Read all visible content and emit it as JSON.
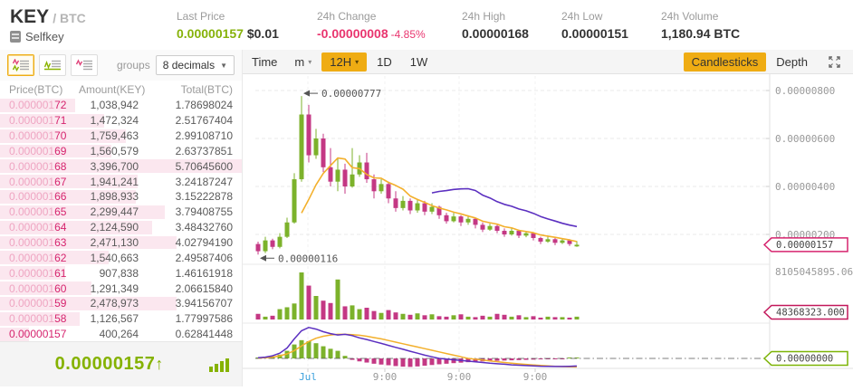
{
  "header": {
    "symbol": "KEY",
    "quote": "/ BTC",
    "name": "Selfkey",
    "stats": [
      {
        "label": "Last Price",
        "value": "0.00000157",
        "extra": "$0.01"
      },
      {
        "label": "24h Change",
        "value": "-0.00000008",
        "extra": "-4.85%"
      },
      {
        "label": "24h High",
        "value": "0.00000168"
      },
      {
        "label": "24h Low",
        "value": "0.00000151"
      },
      {
        "label": "24h Volume",
        "value": "1,180.94 BTC"
      }
    ]
  },
  "orderbook": {
    "groups_label": "groups",
    "decimals_option": "8 decimals",
    "columns": [
      "Price(BTC)",
      "Amount(KEY)",
      "Total(BTC)"
    ],
    "asks": [
      {
        "p": "0.00000172",
        "a": "1,038,942",
        "t": "1.78698024",
        "d": 31
      },
      {
        "p": "0.00000171",
        "a": "1,472,324",
        "t": "2.51767404",
        "d": 43
      },
      {
        "p": "0.00000170",
        "a": "1,759,463",
        "t": "2.99108710",
        "d": 52
      },
      {
        "p": "0.00000169",
        "a": "1,560,579",
        "t": "2.63737851",
        "d": 46
      },
      {
        "p": "0.00000168",
        "a": "3,396,700",
        "t": "5.70645600",
        "d": 100
      },
      {
        "p": "0.00000167",
        "a": "1,941,241",
        "t": "3.24187247",
        "d": 57
      },
      {
        "p": "0.00000166",
        "a": "1,898,933",
        "t": "3.15222878",
        "d": 56
      },
      {
        "p": "0.00000165",
        "a": "2,299,447",
        "t": "3.79408755",
        "d": 68
      },
      {
        "p": "0.00000164",
        "a": "2,124,590",
        "t": "3.48432760",
        "d": 63
      },
      {
        "p": "0.00000163",
        "a": "2,471,130",
        "t": "4.02794190",
        "d": 73
      },
      {
        "p": "0.00000162",
        "a": "1,540,663",
        "t": "2.49587406",
        "d": 45
      },
      {
        "p": "0.00000161",
        "a": "907,838",
        "t": "1.46161918",
        "d": 27
      },
      {
        "p": "0.00000160",
        "a": "1,291,349",
        "t": "2.06615840",
        "d": 38
      },
      {
        "p": "0.00000159",
        "a": "2,478,973",
        "t": "3.94156707",
        "d": 73
      },
      {
        "p": "0.00000158",
        "a": "1,126,567",
        "t": "1.77997586",
        "d": 33
      },
      {
        "p": "0.00000157",
        "a": "400,264",
        "t": "0.62841448",
        "d": 12,
        "hot": true
      }
    ],
    "last_price": "0.00000157",
    "direction_arrow": "↑"
  },
  "toolbar": {
    "time_label": "Time",
    "intervals": [
      {
        "label": "m",
        "dropdown": true
      },
      {
        "label": "12H",
        "dropdown": true,
        "active": true
      },
      {
        "label": "1D"
      },
      {
        "label": "1W"
      }
    ],
    "chart_types": [
      {
        "label": "Candlesticks",
        "active": true
      },
      {
        "label": "Depth"
      }
    ]
  },
  "chart_data": {
    "type": "candlestick",
    "price_unit_e8": true,
    "y_axis": {
      "ticks": [
        {
          "label": "0.00000800",
          "p": 800
        },
        {
          "label": "0.00000600",
          "p": 600
        },
        {
          "label": "0.00000400",
          "p": 400
        },
        {
          "label": "0.00000200",
          "p": 200
        }
      ],
      "current": {
        "label": "0.00000157",
        "p": 157
      }
    },
    "x_labels": [
      {
        "text": "Jul",
        "highlight": true
      },
      {
        "text": "9:00"
      },
      {
        "text": "9:00"
      },
      {
        "text": "9:00"
      }
    ],
    "annotations": {
      "high": {
        "text": "0.00000777",
        "p": 777,
        "ci": 6
      },
      "low": {
        "text": "0.00000116",
        "p": 116,
        "ci": 0
      }
    },
    "volume": {
      "axis_max": "8105045895.06",
      "tag": "48368323.000"
    },
    "macd": {
      "tag": "0.00000000",
      "hist": [
        0.03,
        0.05,
        0.08,
        0.15,
        0.3,
        0.55,
        0.72,
        0.68,
        0.6,
        0.48,
        0.38,
        0.3,
        0.1,
        -0.12,
        -0.25,
        -0.35,
        -0.45,
        -0.52,
        -0.58,
        -0.65,
        -0.7,
        -0.72,
        -0.68,
        -0.62,
        -0.56,
        -0.5,
        -0.45,
        -0.4,
        -0.36,
        -0.32,
        -0.28,
        -0.25,
        -0.22,
        -0.2,
        -0.18,
        -0.16,
        -0.14,
        -0.12,
        -0.1,
        -0.08,
        -0.06,
        -0.05,
        -0.04,
        0.02,
        0.03
      ],
      "macd_line": [
        0.02,
        0.04,
        0.08,
        0.16,
        0.32,
        0.6,
        0.85,
        0.95,
        0.9,
        0.82,
        0.76,
        0.72,
        0.74,
        0.7,
        0.63,
        0.58,
        0.52,
        0.46,
        0.4,
        0.34,
        0.28,
        0.22,
        0.16,
        0.1,
        0.05,
        0.0,
        -0.05,
        -0.1,
        -0.15,
        -0.2,
        -0.25,
        -0.3,
        -0.35,
        -0.39,
        -0.43,
        -0.47,
        -0.5,
        -0.53,
        -0.55,
        -0.57,
        -0.58,
        -0.59,
        -0.59,
        -0.58,
        -0.56
      ],
      "signal_line": [
        0.01,
        0.02,
        0.04,
        0.08,
        0.14,
        0.24,
        0.38,
        0.52,
        0.62,
        0.68,
        0.72,
        0.74,
        0.74,
        0.73,
        0.71,
        0.68,
        0.64,
        0.6,
        0.55,
        0.5,
        0.45,
        0.4,
        0.35,
        0.3,
        0.25,
        0.2,
        0.15,
        0.1,
        0.05,
        0.0,
        -0.06,
        -0.12,
        -0.18,
        -0.24,
        -0.3,
        -0.35,
        -0.4,
        -0.44,
        -0.48,
        -0.52,
        -0.55,
        -0.58,
        -0.6,
        -0.62,
        -0.63
      ]
    },
    "candles": [
      [
        160,
        170,
        116,
        130,
        0.12
      ],
      [
        130,
        190,
        122,
        175,
        0.06
      ],
      [
        175,
        182,
        138,
        148,
        0.08
      ],
      [
        148,
        205,
        142,
        190,
        0.22
      ],
      [
        190,
        270,
        185,
        250,
        0.26
      ],
      [
        250,
        455,
        245,
        430,
        0.34
      ],
      [
        430,
        777,
        420,
        700,
        1.0
      ],
      [
        700,
        740,
        500,
        530,
        0.72
      ],
      [
        530,
        640,
        515,
        600,
        0.5
      ],
      [
        600,
        620,
        460,
        480,
        0.4
      ],
      [
        480,
        560,
        400,
        420,
        0.35
      ],
      [
        420,
        520,
        380,
        470,
        0.85
      ],
      [
        470,
        495,
        370,
        400,
        0.28
      ],
      [
        400,
        560,
        395,
        450,
        0.3
      ],
      [
        450,
        530,
        440,
        500,
        0.22
      ],
      [
        500,
        540,
        415,
        430,
        0.25
      ],
      [
        430,
        450,
        350,
        380,
        0.18
      ],
      [
        380,
        430,
        370,
        410,
        0.14
      ],
      [
        410,
        420,
        330,
        350,
        0.2
      ],
      [
        350,
        380,
        295,
        310,
        0.15
      ],
      [
        310,
        360,
        300,
        340,
        0.12
      ],
      [
        340,
        350,
        285,
        300,
        0.1
      ],
      [
        300,
        345,
        290,
        330,
        0.13
      ],
      [
        330,
        340,
        280,
        295,
        0.09
      ],
      [
        295,
        330,
        285,
        315,
        0.11
      ],
      [
        315,
        320,
        265,
        280,
        0.07
      ],
      [
        280,
        290,
        245,
        255,
        0.06
      ],
      [
        255,
        290,
        250,
        275,
        0.09
      ],
      [
        275,
        280,
        235,
        250,
        0.11
      ],
      [
        250,
        280,
        240,
        265,
        0.06
      ],
      [
        265,
        270,
        225,
        240,
        0.05
      ],
      [
        240,
        250,
        210,
        220,
        0.08
      ],
      [
        220,
        245,
        215,
        235,
        0.06
      ],
      [
        235,
        240,
        205,
        215,
        0.12
      ],
      [
        215,
        225,
        190,
        200,
        0.1
      ],
      [
        200,
        225,
        195,
        215,
        0.06
      ],
      [
        215,
        220,
        185,
        195,
        0.09
      ],
      [
        195,
        215,
        188,
        205,
        0.05
      ],
      [
        205,
        210,
        175,
        185,
        0.07
      ],
      [
        185,
        190,
        160,
        170,
        0.04
      ],
      [
        170,
        195,
        165,
        180,
        0.06
      ],
      [
        180,
        185,
        155,
        165,
        0.05
      ],
      [
        165,
        185,
        160,
        175,
        0.05
      ],
      [
        175,
        180,
        152,
        160,
        0.04
      ],
      [
        150,
        172,
        148,
        157,
        0.06
      ]
    ],
    "colors": {
      "up": "#7cb22b",
      "down": "#c43884",
      "ma_fast": "#f3b02c",
      "ma_slow": "#5b2fc0",
      "tag_price": "#d6246e",
      "tag_vol": "#c2185b",
      "tag_macd": "#7cb305",
      "axis_text": "#999999"
    }
  }
}
